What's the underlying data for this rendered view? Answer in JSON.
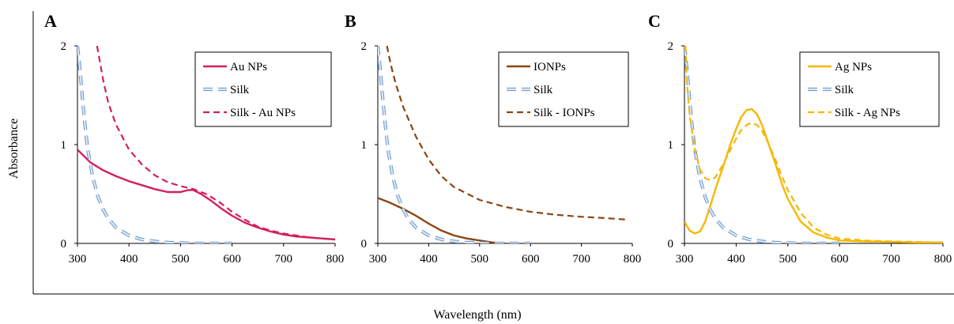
{
  "figure": {
    "ylabel": "Absorbance",
    "xlabel": "Wavelength (nm)"
  },
  "chart_data": [
    {
      "type": "line",
      "panel": "A",
      "xlim": [
        300,
        800
      ],
      "ylim": [
        0,
        2
      ],
      "xticks": [
        300,
        400,
        500,
        600,
        700,
        800
      ],
      "yticks": [
        0,
        1,
        2
      ],
      "legend_position": "top-right",
      "series": [
        {
          "name": "Au NPs",
          "color": "#D41F5E",
          "style": "solid",
          "x": [
            300,
            325,
            350,
            375,
            400,
            425,
            450,
            475,
            500,
            515,
            525,
            540,
            560,
            580,
            600,
            625,
            650,
            675,
            700,
            725,
            750,
            775,
            800
          ],
          "y": [
            0.95,
            0.82,
            0.74,
            0.68,
            0.63,
            0.59,
            0.55,
            0.52,
            0.52,
            0.54,
            0.54,
            0.5,
            0.43,
            0.35,
            0.28,
            0.21,
            0.16,
            0.12,
            0.09,
            0.07,
            0.06,
            0.05,
            0.04
          ]
        },
        {
          "name": "Silk",
          "color": "#7FA7D6",
          "style": "dash-outline",
          "x": [
            300,
            305,
            310,
            315,
            320,
            330,
            340,
            350,
            360,
            375,
            400,
            425,
            450,
            475,
            500,
            525,
            550,
            600
          ],
          "y": [
            2.0,
            1.75,
            1.45,
            1.18,
            0.95,
            0.66,
            0.47,
            0.34,
            0.25,
            0.16,
            0.08,
            0.04,
            0.02,
            0.01,
            0.005,
            0.0,
            0.0,
            0.0
          ]
        },
        {
          "name": "Silk - Au NPs",
          "color": "#D41F5E",
          "style": "dashed",
          "x": [
            338,
            345,
            350,
            360,
            375,
            400,
            425,
            450,
            475,
            500,
            525,
            550,
            575,
            600,
            625,
            650,
            675,
            700,
            725,
            750,
            775,
            800
          ],
          "y": [
            2.0,
            1.8,
            1.65,
            1.42,
            1.2,
            0.95,
            0.8,
            0.69,
            0.62,
            0.58,
            0.55,
            0.5,
            0.42,
            0.32,
            0.24,
            0.17,
            0.13,
            0.1,
            0.08,
            0.06,
            0.05,
            0.04
          ]
        }
      ]
    },
    {
      "type": "line",
      "panel": "B",
      "xlim": [
        300,
        800
      ],
      "ylim": [
        0,
        2
      ],
      "xticks": [
        300,
        400,
        500,
        600,
        700,
        800
      ],
      "yticks": [
        0,
        1,
        2
      ],
      "legend_position": "top-right",
      "series": [
        {
          "name": "IONPs",
          "color": "#8B4513",
          "style": "solid",
          "x": [
            300,
            325,
            350,
            375,
            400,
            425,
            450,
            475,
            500,
            525,
            550
          ],
          "y": [
            0.46,
            0.41,
            0.35,
            0.28,
            0.2,
            0.13,
            0.08,
            0.05,
            0.03,
            0.01,
            0.0
          ]
        },
        {
          "name": "Silk",
          "color": "#7FA7D6",
          "style": "dash-outline",
          "x": [
            300,
            305,
            310,
            315,
            320,
            330,
            340,
            350,
            360,
            375,
            400,
            425,
            450,
            475,
            500,
            525,
            550,
            600
          ],
          "y": [
            2.0,
            1.75,
            1.45,
            1.18,
            0.95,
            0.66,
            0.47,
            0.34,
            0.25,
            0.16,
            0.08,
            0.04,
            0.02,
            0.01,
            0.005,
            0.0,
            0.0,
            0.0
          ]
        },
        {
          "name": "Silk - IONPs",
          "color": "#8B4513",
          "style": "dashed",
          "x": [
            318,
            325,
            335,
            350,
            375,
            400,
            425,
            450,
            500,
            550,
            600,
            650,
            700,
            750,
            790
          ],
          "y": [
            2.0,
            1.82,
            1.62,
            1.38,
            1.08,
            0.85,
            0.68,
            0.57,
            0.44,
            0.37,
            0.32,
            0.29,
            0.27,
            0.255,
            0.24
          ]
        }
      ]
    },
    {
      "type": "line",
      "panel": "C",
      "xlim": [
        300,
        800
      ],
      "ylim": [
        0,
        2
      ],
      "xticks": [
        300,
        400,
        500,
        600,
        700,
        800
      ],
      "yticks": [
        0,
        1,
        2
      ],
      "legend_position": "top-right",
      "series": [
        {
          "name": "Ag NPs",
          "color": "#F5B800",
          "style": "solid",
          "x": [
            300,
            310,
            320,
            330,
            340,
            350,
            360,
            375,
            390,
            400,
            410,
            420,
            430,
            440,
            450,
            460,
            475,
            490,
            500,
            525,
            550,
            575,
            600,
            650,
            700,
            750,
            800
          ],
          "y": [
            0.22,
            0.13,
            0.1,
            0.12,
            0.22,
            0.38,
            0.55,
            0.78,
            1.02,
            1.16,
            1.28,
            1.35,
            1.36,
            1.31,
            1.2,
            1.05,
            0.82,
            0.58,
            0.45,
            0.22,
            0.11,
            0.06,
            0.03,
            0.02,
            0.015,
            0.01,
            0.01
          ]
        },
        {
          "name": "Silk",
          "color": "#7FA7D6",
          "style": "dash-outline",
          "x": [
            300,
            305,
            310,
            315,
            320,
            330,
            340,
            350,
            360,
            375,
            400,
            425,
            450,
            475,
            500,
            525,
            550,
            600
          ],
          "y": [
            2.0,
            1.75,
            1.45,
            1.18,
            0.95,
            0.66,
            0.47,
            0.34,
            0.25,
            0.16,
            0.08,
            0.04,
            0.02,
            0.01,
            0.005,
            0.0,
            0.0,
            0.0
          ]
        },
        {
          "name": "Silk - Ag NPs",
          "color": "#F5B800",
          "style": "dashed",
          "x": [
            302,
            305,
            310,
            320,
            330,
            340,
            350,
            360,
            375,
            390,
            400,
            410,
            420,
            430,
            440,
            450,
            460,
            475,
            490,
            500,
            525,
            550,
            575,
            600,
            650,
            700,
            750,
            800
          ],
          "y": [
            2.0,
            1.6,
            1.3,
            0.95,
            0.75,
            0.66,
            0.64,
            0.67,
            0.8,
            0.96,
            1.06,
            1.15,
            1.2,
            1.22,
            1.2,
            1.14,
            1.04,
            0.86,
            0.66,
            0.54,
            0.31,
            0.16,
            0.09,
            0.05,
            0.03,
            0.02,
            0.015,
            0.01
          ]
        }
      ]
    }
  ]
}
